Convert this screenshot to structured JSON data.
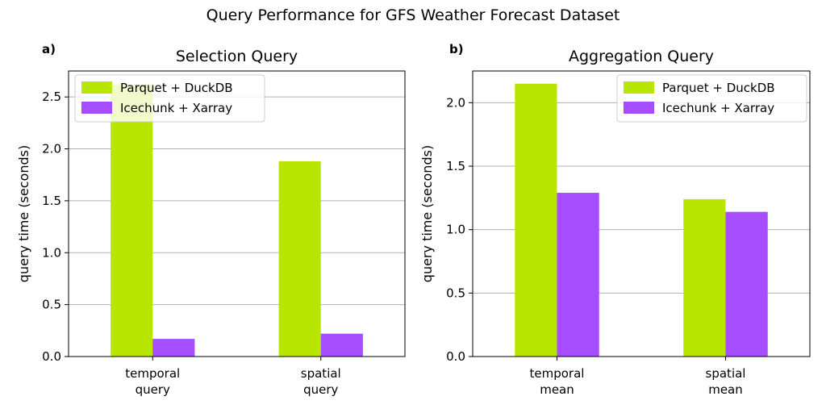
{
  "figure_title": "Query Performance for GFS Weather Forecast Dataset",
  "colors": {
    "parquet": "#b8e600",
    "icechunk": "#a54dff"
  },
  "chart_data": [
    {
      "type": "bar",
      "panel_label": "a)",
      "title": "Selection Query",
      "xlabel": "",
      "ylabel": "query time (seconds)",
      "ylim": [
        0,
        2.75
      ],
      "yticks": [
        "0.0",
        "0.5",
        "1.0",
        "1.5",
        "2.0",
        "2.5"
      ],
      "categories": [
        [
          "temporal",
          "query"
        ],
        [
          "spatial",
          "query"
        ]
      ],
      "series": [
        {
          "name": "Parquet + DuckDB",
          "values": [
            2.62,
            1.88
          ]
        },
        {
          "name": "Icechunk + Xarray",
          "values": [
            0.17,
            0.22
          ]
        }
      ],
      "grid": "y",
      "legend": "top-left"
    },
    {
      "type": "bar",
      "panel_label": "b)",
      "title": "Aggregation Query",
      "xlabel": "",
      "ylabel": "query time (seconds)",
      "ylim": [
        0,
        2.25
      ],
      "yticks": [
        "0.0",
        "0.5",
        "1.0",
        "1.5",
        "2.0"
      ],
      "categories": [
        [
          "temporal",
          "mean"
        ],
        [
          "spatial",
          "mean"
        ]
      ],
      "series": [
        {
          "name": "Parquet + DuckDB",
          "values": [
            2.15,
            1.24
          ]
        },
        {
          "name": "Icechunk + Xarray",
          "values": [
            1.29,
            1.14
          ]
        }
      ],
      "grid": "y",
      "legend": "top-right"
    }
  ]
}
